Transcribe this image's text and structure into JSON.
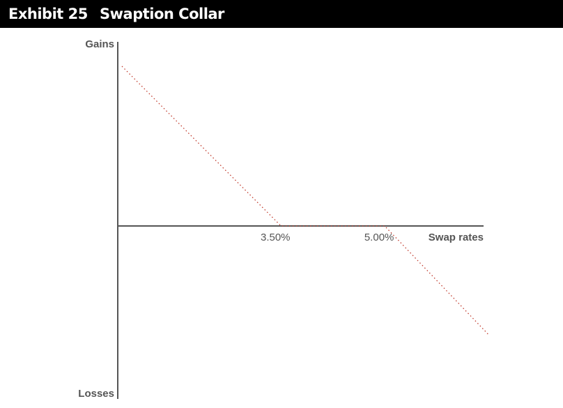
{
  "header": {
    "exhibit": "Exhibit 25",
    "title": "Swaption Collar"
  },
  "colors": {
    "header_bg": "#000000",
    "axis": "#555555",
    "payoff_line": "#c0392b"
  },
  "chart_data": {
    "type": "line",
    "title": "Swaption Collar",
    "xlabel": "Swap rates",
    "ylabel_top": "Gains",
    "ylabel_bottom": "Losses",
    "x_ticks": [
      "3.50%",
      "5.00%"
    ],
    "series": [
      {
        "style": "dotted",
        "x": [
          1.2,
          3.5,
          5.0,
          6.5
        ],
        "y": [
          1.0,
          0.0,
          0.0,
          -0.68
        ]
      }
    ],
    "xlim": [
      1.2,
      6.5
    ],
    "ylim": [
      -1.06,
      1.15
    ],
    "grid": false,
    "legend": "none"
  }
}
